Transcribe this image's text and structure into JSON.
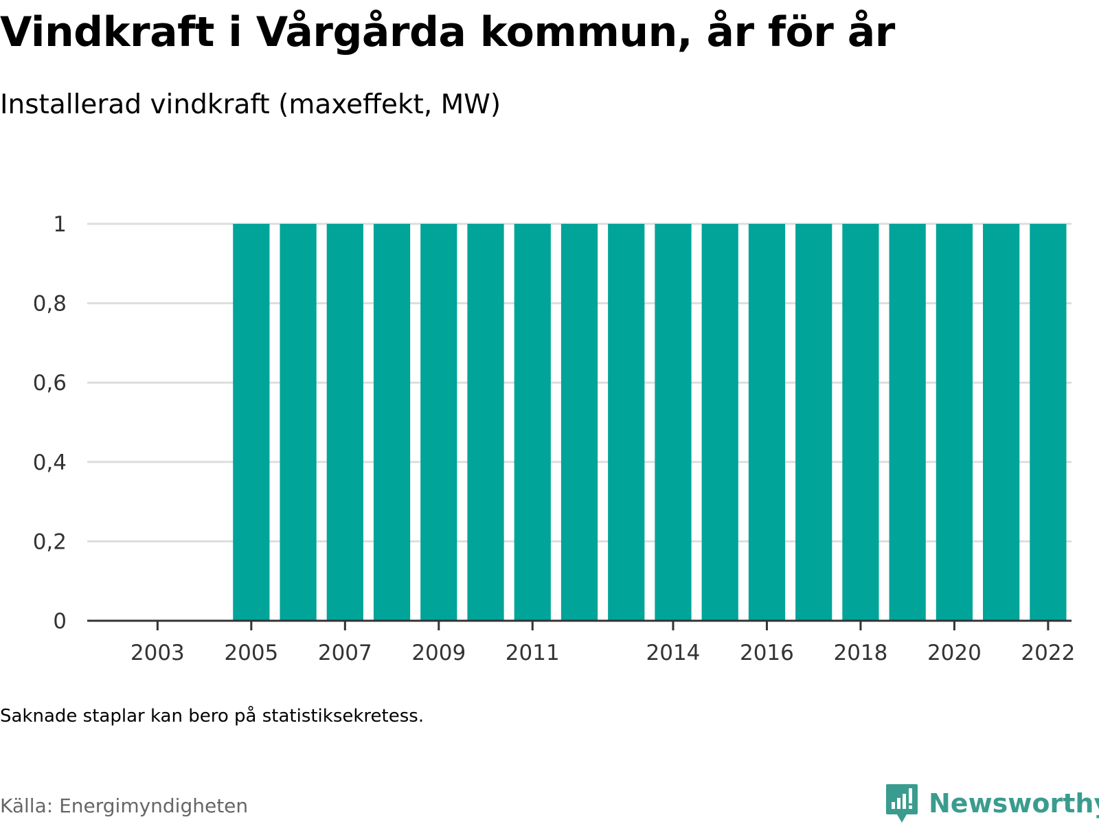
{
  "header": {
    "title": "Vindkraft i Vårgårda kommun, år för år",
    "subtitle": "Installerad vindkraft (maxeffekt, MW)"
  },
  "footer": {
    "note": "Saknade staplar kan bero på statistiksekretess.",
    "source": "Källa: Energimyndigheten",
    "brand": "Newsworthy"
  },
  "colors": {
    "bar": "#00a499",
    "brand": "#3a9c8e",
    "grid": "#dddddd",
    "axis": "#333333"
  },
  "chart_data": {
    "type": "bar",
    "title": "Vindkraft i Vårgårda kommun, år för år",
    "subtitle": "Installerad vindkraft (maxeffekt, MW)",
    "categories": [
      2002,
      2003,
      2004,
      2005,
      2006,
      2007,
      2008,
      2009,
      2010,
      2011,
      2012,
      2013,
      2014,
      2015,
      2016,
      2017,
      2018,
      2019,
      2020,
      2021,
      2022
    ],
    "values": [
      null,
      null,
      null,
      1,
      1,
      1,
      1,
      1,
      1,
      1,
      1,
      1,
      1,
      1,
      1,
      1,
      1,
      1,
      1,
      1,
      1
    ],
    "x_tick_labels": [
      "2003",
      "2005",
      "2007",
      "2009",
      "2011",
      "2014",
      "2016",
      "2018",
      "2020",
      "2022"
    ],
    "y_ticks": [
      0,
      0.2,
      0.4,
      0.6,
      0.8,
      1
    ],
    "y_tick_labels": [
      "0",
      "0,2",
      "0,4",
      "0,6",
      "0,8",
      "1"
    ],
    "ylim": [
      0,
      1
    ],
    "xlabel": "",
    "ylabel": "",
    "grid": true,
    "legend": "none"
  }
}
